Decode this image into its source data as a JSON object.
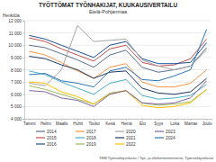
{
  "chart_data": {
    "type": "line",
    "title": "TYÖTTÖMAT TYÖNHAKIJAT, KUUKAUSIVERTAILU",
    "subtitle": "Etelä-Pohjanmaa",
    "y_label": "Henkilöä",
    "source": "TEM Työnvälitystilasto / Työ- ja elinkeinoministeriö, Työnvälitystilasto",
    "categories": [
      "Tammi",
      "Helmi",
      "Maalis",
      "Huhti",
      "Touko",
      "Kesä",
      "Heinä",
      "Elo",
      "Syys",
      "Loka",
      "Marras",
      "Joulu"
    ],
    "ylim": [
      4000,
      12000
    ],
    "yticks": [
      {
        "value": 4000,
        "label": "4 000"
      },
      {
        "value": 5000,
        "label": "5 000"
      },
      {
        "value": 6000,
        "label": "6 000"
      },
      {
        "value": 7000,
        "label": "7 000"
      },
      {
        "value": 8000,
        "label": "8 000"
      },
      {
        "value": 9000,
        "label": "9 000"
      },
      {
        "value": 10000,
        "label": "10 000"
      },
      {
        "value": 11000,
        "label": "11 000"
      },
      {
        "value": 12000,
        "label": "12 000"
      }
    ],
    "grid": true,
    "legend": "bottom",
    "series": [
      {
        "name": "2014",
        "color": "#5b6f8f",
        "values": [
          10000,
          9800,
          9300,
          8800,
          8200,
          9200,
          9600,
          8200,
          7800,
          8000,
          8300,
          9800
        ]
      },
      {
        "name": "2015",
        "color": "#c0504d",
        "values": [
          10600,
          10300,
          9700,
          9200,
          8700,
          9700,
          10000,
          8600,
          8300,
          8400,
          8900,
          10500
        ]
      },
      {
        "name": "2016",
        "color": "#1f4e9a",
        "values": [
          10800,
          10500,
          10000,
          9500,
          9000,
          10000,
          10300,
          8900,
          8500,
          8500,
          8600,
          10200
        ]
      },
      {
        "name": "2017",
        "color": "#f79646",
        "values": [
          9500,
          9200,
          8600,
          7900,
          7300,
          8200,
          8500,
          7000,
          6600,
          6600,
          6900,
          8000
        ]
      },
      {
        "name": "2018",
        "color": "#4bacc6",
        "values": [
          7900,
          7600,
          7000,
          6500,
          6000,
          6900,
          7200,
          5900,
          5600,
          5700,
          5900,
          6800
        ]
      },
      {
        "name": "2019",
        "color": "#9bbb59",
        "values": [
          6700,
          6400,
          6000,
          5600,
          5200,
          6100,
          6300,
          5300,
          5100,
          5200,
          5400,
          6400
        ]
      },
      {
        "name": "2020",
        "color": "#a6a6a6",
        "values": [
          6900,
          6700,
          8000,
          11600,
          10300,
          10400,
          10500,
          8800,
          8300,
          8000,
          8300,
          9600
        ]
      },
      {
        "name": "2021",
        "color": "#1f3864",
        "values": [
          9100,
          8900,
          8400,
          8000,
          7300,
          7800,
          7900,
          6500,
          6100,
          6000,
          6200,
          7300
        ]
      },
      {
        "name": "2022",
        "color": "#ffc000",
        "values": [
          7000,
          6900,
          6200,
          5800,
          5200,
          6000,
          6300,
          5100,
          4900,
          5000,
          5300,
          6400
        ]
      },
      {
        "name": "2023",
        "color": "#8064a2",
        "values": [
          6300,
          6200,
          5700,
          5500,
          5000,
          6000,
          6300,
          5300,
          5200,
          5300,
          5700,
          7100
        ]
      },
      {
        "name": "2024",
        "color": "#2e75b6",
        "values": [
          7600,
          7700,
          7100,
          6900,
          6600,
          7900,
          8200,
          7200,
          7100,
          7500,
          8000,
          11300
        ]
      }
    ]
  }
}
